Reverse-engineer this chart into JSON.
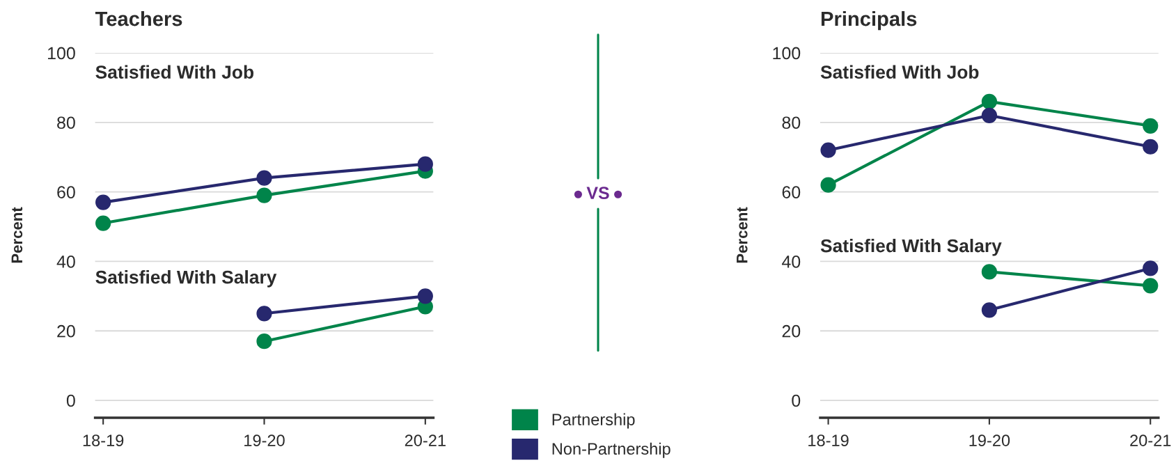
{
  "chart_data": [
    {
      "type": "line",
      "title": "Teachers",
      "ylabel": "Percent",
      "categories": [
        "18-19",
        "19-20",
        "20-21"
      ],
      "ylim": [
        -5,
        100
      ],
      "yticks": [
        0,
        20,
        40,
        60,
        80,
        100
      ],
      "grid": "y",
      "marker": "circle",
      "legend": "bottom right",
      "series": [
        {
          "name": "Partnership",
          "color": "#00844a",
          "values": [
            51,
            59,
            66
          ]
        },
        {
          "name": "Non-Partnership",
          "color": "#27286e",
          "values": [
            57,
            64,
            68
          ]
        },
        {
          "color": "#00844a",
          "values": [
            null,
            17,
            27
          ]
        },
        {
          "color": "#27286e",
          "values": [
            null,
            25,
            30
          ]
        }
      ],
      "annotations": [
        "Satisfied With Job",
        "Satisfied With Salary"
      ]
    },
    {
      "type": "other",
      "annotations": [
        "VS"
      ]
    },
    {
      "type": "line",
      "title": "Principals",
      "ylabel": "Percent",
      "categories": [
        "18-19",
        "19-20",
        "20-21"
      ],
      "ylim": [
        -5,
        100
      ],
      "yticks": [
        0,
        20,
        40,
        60,
        80,
        100
      ],
      "grid": "y",
      "marker": "circle",
      "series": [
        {
          "color": "#00844a",
          "values": [
            62,
            86,
            79
          ]
        },
        {
          "color": "#27286e",
          "values": [
            72,
            82,
            73
          ]
        },
        {
          "color": "#00844a",
          "values": [
            null,
            37,
            33
          ]
        },
        {
          "color": "#27286e",
          "values": [
            null,
            26,
            38
          ]
        }
      ],
      "annotations": [
        "Satisfied With Job",
        "Satisfied With Salary"
      ]
    }
  ]
}
